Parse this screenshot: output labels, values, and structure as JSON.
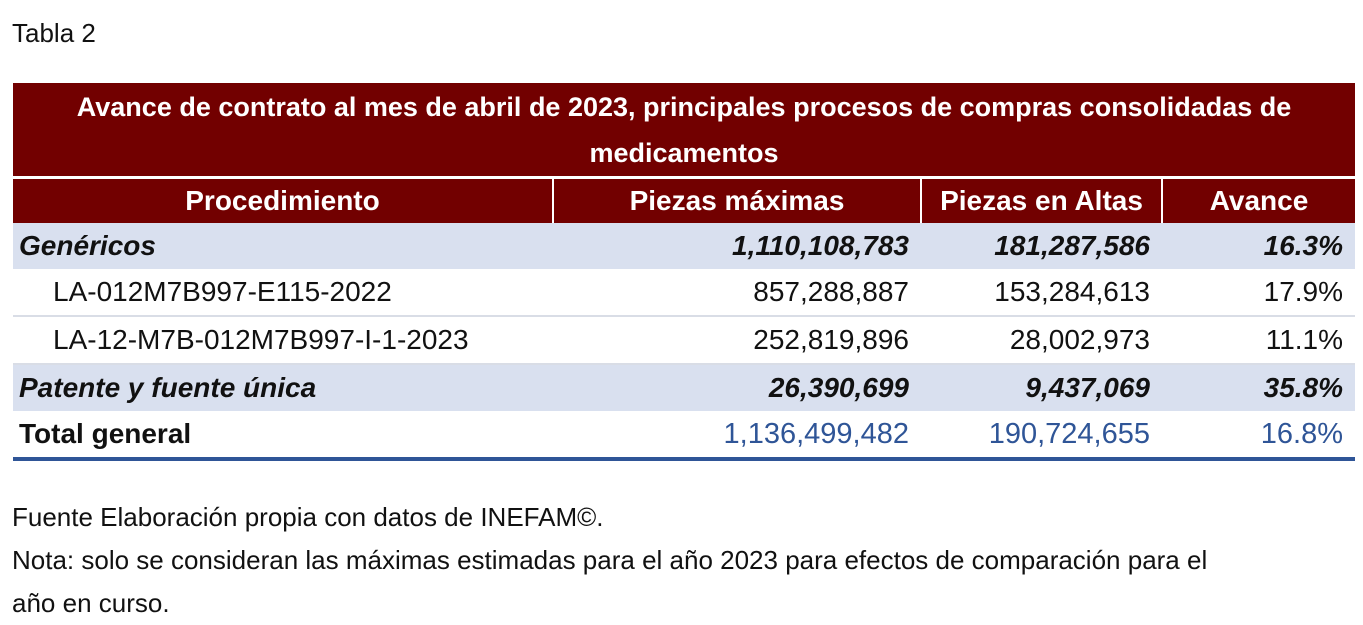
{
  "caption": "Tabla 2",
  "table": {
    "title": "Avance de contrato al mes de abril de 2023, principales procesos de compras consolidadas de medicamentos",
    "columns": [
      "Procedimiento",
      "Piezas máximas",
      "Piezas en Altas",
      "Avance"
    ],
    "rows": [
      {
        "type": "group",
        "cells": [
          "Genéricos",
          "1,110,108,783",
          "181,287,586",
          "16.3%"
        ]
      },
      {
        "type": "sub",
        "cells": [
          "LA-012M7B997-E115-2022",
          "857,288,887",
          "153,284,613",
          "17.9%"
        ]
      },
      {
        "type": "sub",
        "cells": [
          "LA-12-M7B-012M7B997-I-1-2023",
          "252,819,896",
          "28,002,973",
          "11.1%"
        ]
      },
      {
        "type": "group",
        "cells": [
          "Patente y fuente única",
          "26,390,699",
          "9,437,069",
          "35.8%"
        ]
      },
      {
        "type": "total",
        "cells": [
          "Total general",
          "1,136,499,482",
          "190,724,655",
          "16.8%"
        ]
      }
    ]
  },
  "notes": {
    "source": "Fuente Elaboración propia con datos de INEFAM©.",
    "note": "Nota: solo se consideran las máximas estimadas para el año 2023 para efectos de comparación para el año en curso."
  },
  "colors": {
    "header_bg": "#720000",
    "group_bg": "#d9e0ef",
    "total_accent": "#2f5597"
  }
}
